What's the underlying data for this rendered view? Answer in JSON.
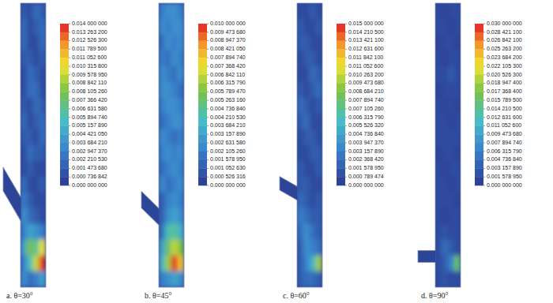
{
  "chart_data": [
    {
      "type": "heatmap",
      "title": "a. θ=30°",
      "angle": 30,
      "cells": [
        [
          0.0015,
          0.0008,
          0.0022,
          0.0015
        ],
        [
          0.0022,
          0.0008,
          0.0015,
          0.0022
        ],
        [
          0.0022,
          0.0008,
          0.0008,
          0.0022
        ],
        [
          0.0015,
          0.0015,
          0.0008,
          0.0015
        ],
        [
          0.0008,
          0.0022,
          0.0015,
          0.0008
        ],
        [
          0.0008,
          0.0022,
          0.0022,
          0.0008
        ],
        [
          0.0015,
          0.0008,
          0.0022,
          0.0015
        ],
        [
          0.0022,
          0.0008,
          0.0015,
          0.0022
        ],
        [
          0.0015,
          0.0015,
          0.0008,
          0.0022
        ],
        [
          0.0008,
          0.0022,
          0.0015,
          0.0015
        ],
        [
          0.0008,
          0.0015,
          0.0008,
          0.0008
        ],
        [
          0.0022,
          0.0008,
          0.0008,
          0.0015
        ],
        [
          0.0029,
          0.0015,
          0.0008,
          0.0008
        ],
        [
          0.0037,
          0.0022,
          0.0015,
          0.0008
        ],
        [
          0.0029,
          0.0044,
          0.0037,
          0.0029
        ],
        [
          0.0044,
          0.0081,
          0.0066,
          0.0103
        ],
        [
          0.0029,
          0.0059,
          0.0096,
          0.014
        ],
        [
          0.0037,
          0.0022,
          0.0029,
          0.0044
        ]
      ],
      "colorbar_range": [
        0,
        0.014
      ],
      "colorbar_ticks": [
        {
          "value": 0.014,
          "label": "0.014 000 000"
        },
        {
          "value": 0.0132632,
          "label": "0.013 263 200"
        },
        {
          "value": 0.0125263,
          "label": "0.012 526 300"
        },
        {
          "value": 0.0117895,
          "label": "0.011 789 500"
        },
        {
          "value": 0.0110526,
          "label": "0.011 052 600"
        },
        {
          "value": 0.0103158,
          "label": "0.010 315 800"
        },
        {
          "value": 0.00957895,
          "label": "0.009 578 950"
        },
        {
          "value": 0.00884211,
          "label": "0.008 842 110"
        },
        {
          "value": 0.00810526,
          "label": "0.008 105 260"
        },
        {
          "value": 0.00736642,
          "label": "0.007 366 420"
        },
        {
          "value": 0.00663158,
          "label": "0.006 631 580"
        },
        {
          "value": 0.00589474,
          "label": "0.005 894 740"
        },
        {
          "value": 0.00515789,
          "label": "0.005 157 890"
        },
        {
          "value": 0.00442105,
          "label": "0.004 421 050"
        },
        {
          "value": 0.00368421,
          "label": "0.003 684 210"
        },
        {
          "value": 0.00294737,
          "label": "0.002 947 370"
        },
        {
          "value": 0.00221053,
          "label": "0.002 210 530"
        },
        {
          "value": 0.00147368,
          "label": "0.001 473 680"
        },
        {
          "value": 0.000736842,
          "label": "0.000 736 842"
        },
        {
          "value": 0,
          "label": "0.000 000 000"
        }
      ]
    },
    {
      "type": "heatmap",
      "title": "b. θ=45°",
      "angle": 45,
      "cells": [
        [
          0.0021,
          0.0026,
          0.0026,
          0.0021
        ],
        [
          0.0026,
          0.0021,
          0.0026,
          0.0026
        ],
        [
          0.0016,
          0.0026,
          0.0021,
          0.0026
        ],
        [
          0.0021,
          0.0016,
          0.0026,
          0.0021
        ],
        [
          0.0026,
          0.0021,
          0.0016,
          0.0026
        ],
        [
          0.0026,
          0.0026,
          0.0021,
          0.0016
        ],
        [
          0.0021,
          0.0026,
          0.0026,
          0.0021
        ],
        [
          0.0016,
          0.0021,
          0.0026,
          0.0026
        ],
        [
          0.0026,
          0.0021,
          0.0016,
          0.0021
        ],
        [
          0.0021,
          0.0026,
          0.0021,
          0.0026
        ],
        [
          0.0016,
          0.0021,
          0.0026,
          0.0021
        ],
        [
          0.0026,
          0.0016,
          0.0021,
          0.0026
        ],
        [
          0.0011,
          0.0021,
          0.0026,
          0.0021
        ],
        [
          0.0011,
          0.0026,
          0.0032,
          0.0026
        ],
        [
          0.0016,
          0.0042,
          0.0047,
          0.0037
        ],
        [
          0.0032,
          0.0053,
          0.0068,
          0.0058
        ],
        [
          0.0037,
          0.0063,
          0.01,
          0.0079
        ],
        [
          0.0021,
          0.0026,
          0.0032,
          0.0026
        ]
      ],
      "colorbar_range": [
        0,
        0.01
      ],
      "colorbar_ticks": [
        {
          "value": 0.01,
          "label": "0.010 000 000"
        },
        {
          "value": 0.00947368,
          "label": "0.009 473 680"
        },
        {
          "value": 0.00894737,
          "label": "0.008 947 370"
        },
        {
          "value": 0.00842105,
          "label": "0.008 421 050"
        },
        {
          "value": 0.00789474,
          "label": "0.007 894 740"
        },
        {
          "value": 0.00736842,
          "label": "0.007 368 420"
        },
        {
          "value": 0.00684211,
          "label": "0.006 842 110"
        },
        {
          "value": 0.00631579,
          "label": "0.006 315 790"
        },
        {
          "value": 0.00578947,
          "label": "0.005 789 470"
        },
        {
          "value": 0.00526316,
          "label": "0.005 263 160"
        },
        {
          "value": 0.00473684,
          "label": "0.004 736 840"
        },
        {
          "value": 0.00421053,
          "label": "0.004 210 530"
        },
        {
          "value": 0.00368421,
          "label": "0.003 684 210"
        },
        {
          "value": 0.00315789,
          "label": "0.003 157 890"
        },
        {
          "value": 0.00263158,
          "label": "0.002 631 580"
        },
        {
          "value": 0.00210526,
          "label": "0.002 105 260"
        },
        {
          "value": 0.00157895,
          "label": "0.001 578 950"
        },
        {
          "value": 0.00105263,
          "label": "0.001 052 630"
        },
        {
          "value": 0.000526316,
          "label": "0.000 526 316"
        },
        {
          "value": 0,
          "label": "0.000 000 000"
        }
      ]
    },
    {
      "type": "heatmap",
      "title": "c. θ=60°",
      "angle": 60,
      "cells": [
        [
          0.0008,
          0.0008,
          0.0016,
          0.0008
        ],
        [
          0.0016,
          0.0008,
          0.0008,
          0.0016
        ],
        [
          0.0016,
          0.0016,
          0.0008,
          0.0008
        ],
        [
          0.0008,
          0.0016,
          0.0016,
          0.0008
        ],
        [
          0.0008,
          0.0008,
          0.0024,
          0.0016
        ],
        [
          0.0016,
          0.0008,
          0.0016,
          0.0024
        ],
        [
          0.0024,
          0.0016,
          0.0008,
          0.0016
        ],
        [
          0.0016,
          0.0024,
          0.0008,
          0.0008
        ],
        [
          0.0008,
          0.0016,
          0.0016,
          0.0008
        ],
        [
          0.0008,
          0.0008,
          0.0016,
          0.0016
        ],
        [
          0.0016,
          0.0008,
          0.0008,
          0.0016
        ],
        [
          0.0016,
          0.0016,
          0.0008,
          0.0008
        ],
        [
          0.0024,
          0.0016,
          0.0008,
          0.0016
        ],
        [
          0.0032,
          0.0024,
          0.0016,
          0.0016
        ],
        [
          0.0024,
          0.0039,
          0.0024,
          0.0016
        ],
        [
          0.0016,
          0.0039,
          0.0032,
          0.0024
        ],
        [
          0.0016,
          0.0032,
          0.0055,
          0.0095
        ],
        [
          0.0016,
          0.0024,
          0.0024,
          0.0016
        ]
      ],
      "colorbar_range": [
        0,
        0.015
      ],
      "colorbar_ticks": [
        {
          "value": 0.015,
          "label": "0.015 000 000"
        },
        {
          "value": 0.0142105,
          "label": "0.014 210 500"
        },
        {
          "value": 0.0134211,
          "label": "0.013 421 100"
        },
        {
          "value": 0.0126316,
          "label": "0.012 631 600"
        },
        {
          "value": 0.0118421,
          "label": "0.011 842 100"
        },
        {
          "value": 0.0110526,
          "label": "0.011 052 600"
        },
        {
          "value": 0.0102632,
          "label": "0.010 263 200"
        },
        {
          "value": 0.00947368,
          "label": "0.009 473 680"
        },
        {
          "value": 0.00868421,
          "label": "0.008 684 210"
        },
        {
          "value": 0.00789474,
          "label": "0.007 894 740"
        },
        {
          "value": 0.00710526,
          "label": "0.007 105 260"
        },
        {
          "value": 0.00631579,
          "label": "0.006 315 790"
        },
        {
          "value": 0.00552632,
          "label": "0.005 526 320"
        },
        {
          "value": 0.00473684,
          "label": "0.004 736 840"
        },
        {
          "value": 0.00394737,
          "label": "0.003 947 370"
        },
        {
          "value": 0.00315789,
          "label": "0.003 157 890"
        },
        {
          "value": 0.00236842,
          "label": "0.002 368 420"
        },
        {
          "value": 0.00157895,
          "label": "0.001 578 950"
        },
        {
          "value": 0.000789474,
          "label": "0.000 789 474"
        },
        {
          "value": 0,
          "label": "0.000 000 000"
        }
      ]
    },
    {
      "type": "heatmap",
      "title": "d. θ=90°",
      "angle": 90,
      "cells": [
        [
          0.0016,
          0.0008,
          0.0016,
          0.0016
        ],
        [
          0.0016,
          0.0016,
          0.0008,
          0.0016
        ],
        [
          0.0008,
          0.0016,
          0.0016,
          0.0008
        ],
        [
          0.0016,
          0.0008,
          0.0016,
          0.0016
        ],
        [
          0.0016,
          0.0016,
          0.0032,
          0.0016
        ],
        [
          0.0008,
          0.0016,
          0.0016,
          0.0016
        ],
        [
          0.0016,
          0.0008,
          0.0016,
          0.0008
        ],
        [
          0.0016,
          0.0016,
          0.0008,
          0.0016
        ],
        [
          0.0016,
          0.0016,
          0.0016,
          0.0016
        ],
        [
          0.0008,
          0.0016,
          0.0016,
          0.0008
        ],
        [
          0.0016,
          0.0008,
          0.0016,
          0.0016
        ],
        [
          0.0016,
          0.0016,
          0.0008,
          0.0016
        ],
        [
          0.0016,
          0.0016,
          0.0016,
          0.0008
        ],
        [
          0.0016,
          0.0008,
          0.0016,
          0.0016
        ],
        [
          0.0016,
          0.0024,
          0.0016,
          0.0016
        ],
        [
          0.0016,
          0.0047,
          0.0032,
          0.0016
        ],
        [
          0.0016,
          0.0032,
          0.0063,
          0.016
        ],
        [
          0.0016,
          0.0024,
          0.0016,
          0.0016
        ]
      ],
      "colorbar_range": [
        0,
        0.03
      ],
      "colorbar_ticks": [
        {
          "value": 0.03,
          "label": "0.030 000 000"
        },
        {
          "value": 0.0284211,
          "label": "0.028 421 100"
        },
        {
          "value": 0.0268421,
          "label": "0.026 842 100"
        },
        {
          "value": 0.0252632,
          "label": "0.025 263 200"
        },
        {
          "value": 0.0236842,
          "label": "0.023 684 200"
        },
        {
          "value": 0.0221053,
          "label": "0.022 105 300"
        },
        {
          "value": 0.0205263,
          "label": "0.020 526 300"
        },
        {
          "value": 0.0189474,
          "label": "0.018 947 400"
        },
        {
          "value": 0.0173684,
          "label": "0.017 368 400"
        },
        {
          "value": 0.0157895,
          "label": "0.015 789 500"
        },
        {
          "value": 0.0142105,
          "label": "0.014 210 500"
        },
        {
          "value": 0.0126316,
          "label": "0.012 631 600"
        },
        {
          "value": 0.0110526,
          "label": "0.011 052 600"
        },
        {
          "value": 0.00947368,
          "label": "0.009 473 680"
        },
        {
          "value": 0.00789474,
          "label": "0.007 894 740"
        },
        {
          "value": 0.00631579,
          "label": "0.006 315 790"
        },
        {
          "value": 0.00473684,
          "label": "0.004 736 840"
        },
        {
          "value": 0.00315789,
          "label": "0.003 157 890"
        },
        {
          "value": 0.00157895,
          "label": "0.001 578 950"
        },
        {
          "value": 0,
          "label": "0.000 000 000"
        }
      ]
    }
  ]
}
